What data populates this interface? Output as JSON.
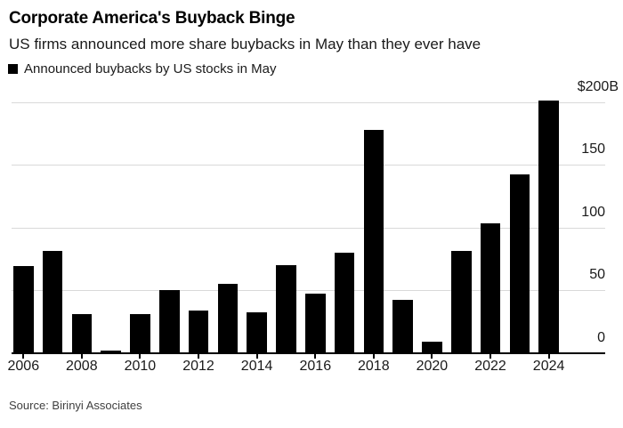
{
  "header": {
    "title": "Corporate America's Buyback Binge",
    "subtitle": "US firms announced more share buybacks in May than they ever have"
  },
  "legend": {
    "label": "Announced buybacks by US stocks in May",
    "swatch_color": "#000000"
  },
  "footer": {
    "source": "Source: Birinyi Associates"
  },
  "colors": {
    "bar": "#000000",
    "gridline": "#d9d9d9",
    "axis": "#000000",
    "axis_label_text": "#1a1a1a",
    "source_text": "#404040",
    "background": "#ffffff"
  },
  "chart_data": {
    "type": "bar",
    "title": "Corporate America's Buyback Binge",
    "subtitle": "US firms announced more share buybacks in May than they ever have",
    "series_name": "Announced buybacks by US stocks in May",
    "unit": "billions of US dollars",
    "categories": [
      2006,
      2007,
      2008,
      2009,
      2010,
      2011,
      2012,
      2013,
      2014,
      2015,
      2016,
      2017,
      2018,
      2019,
      2020,
      2021,
      2022,
      2023,
      2024
    ],
    "values": [
      69,
      81,
      31,
      2,
      31,
      50,
      34,
      55,
      32,
      70,
      47,
      80,
      178,
      42,
      9,
      81,
      103,
      142,
      201
    ],
    "y_ticks": [
      {
        "value": 200,
        "label": "$200B"
      },
      {
        "value": 150,
        "label": "150"
      },
      {
        "value": 100,
        "label": "100"
      },
      {
        "value": 50,
        "label": "50"
      },
      {
        "value": 0,
        "label": "0"
      }
    ],
    "x_tick_labels": [
      "2006",
      "2008",
      "2010",
      "2012",
      "2014",
      "2016",
      "2018",
      "2020",
      "2022",
      "2024"
    ],
    "ylim": [
      0,
      210
    ],
    "grid": "horizontal",
    "legend_position": "top-left",
    "axis_label_side": "right"
  }
}
